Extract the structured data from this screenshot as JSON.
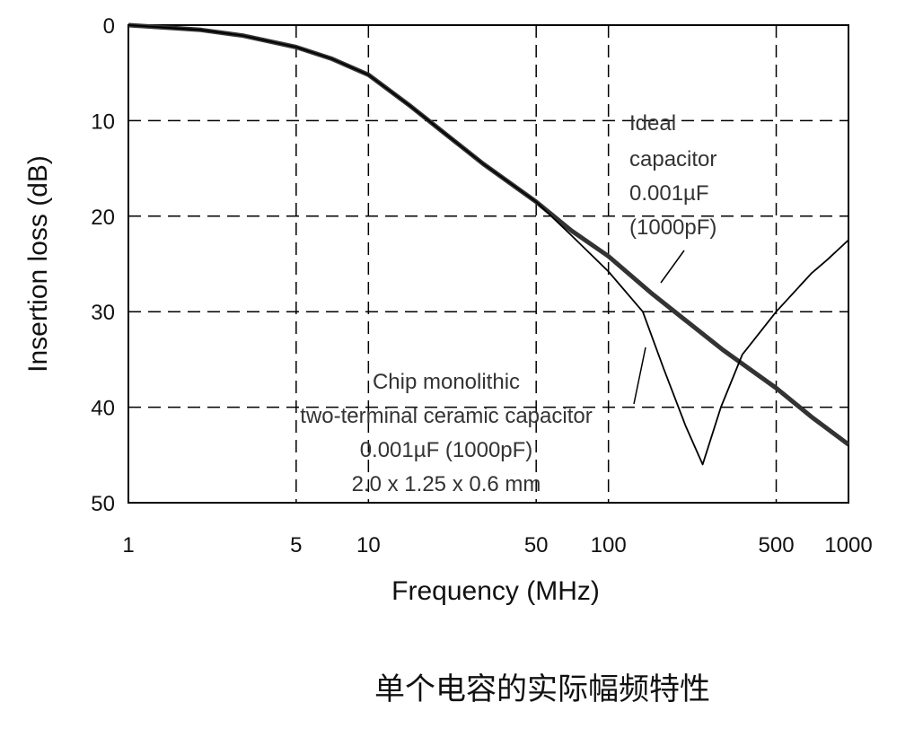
{
  "chart_data": {
    "type": "line",
    "title": "",
    "xlabel": "Frequency (MHz)",
    "ylabel": "Insertion loss (dB)",
    "xscale": "log",
    "xlim": [
      1,
      1000
    ],
    "ylim": [
      0,
      50
    ],
    "y_inverted": true,
    "grid": "dashed",
    "xticks": [
      1,
      5,
      10,
      50,
      100,
      500,
      1000
    ],
    "xtick_labels": [
      "1",
      "5",
      "10",
      "50",
      "100",
      "500",
      "1000"
    ],
    "yticks": [
      0,
      10,
      20,
      30,
      40,
      50
    ],
    "ytick_labels": [
      "0",
      "10",
      "20",
      "30",
      "40",
      "50"
    ],
    "series": [
      {
        "name": "Ideal capacitor 0.001µF (1000pF)",
        "style": "thick",
        "x": [
          1,
          2,
          3,
          5,
          7,
          10,
          15,
          20,
          30,
          50,
          70,
          100,
          150,
          200,
          300,
          500,
          700,
          1000
        ],
        "y": [
          0,
          0.5,
          1.1,
          2.3,
          3.5,
          5.2,
          8.5,
          11,
          14.5,
          18.5,
          21.5,
          24.2,
          28,
          30.5,
          34,
          38,
          41,
          43.9
        ]
      },
      {
        "name": "Chip monolithic two-terminal ceramic capacitor 0.001µF (1000pF) 2.0 x 1.25 x 0.6 mm",
        "style": "thin",
        "x": [
          1,
          2,
          3,
          5,
          7,
          10,
          15,
          20,
          30,
          50,
          70,
          100,
          139,
          170,
          210,
          247,
          294,
          361,
          500,
          700,
          813,
          1000
        ],
        "y": [
          0,
          0.5,
          1.1,
          2.3,
          3.5,
          5.2,
          8.5,
          11,
          14.5,
          18.5,
          22,
          25.8,
          30,
          36,
          42,
          46,
          40,
          34.5,
          30,
          26,
          24.6,
          22.5
        ]
      }
    ],
    "annotations": {
      "ideal": [
        "Ideal",
        "capacitor",
        "0.001µF",
        "(1000pF)"
      ],
      "chip": [
        "Chip monolithic",
        "two-terminal ceramic capacitor",
        "0.001µF (1000pF)",
        "2.0 x 1.25 x 0.6 mm"
      ]
    }
  },
  "caption": "单个电容的实际幅频特性"
}
